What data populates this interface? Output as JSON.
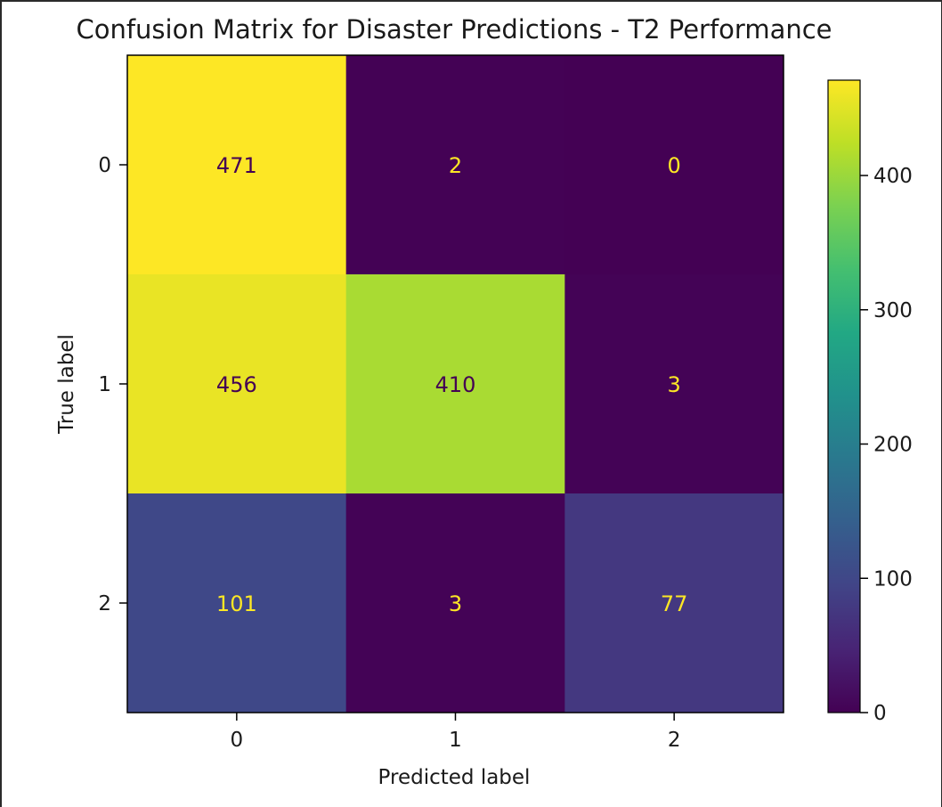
{
  "chart_data": {
    "type": "heatmap",
    "title": "Confusion Matrix for Disaster Predictions - T2 Performance",
    "xlabel": "Predicted label",
    "ylabel": "True label",
    "x_ticks": [
      "0",
      "1",
      "2"
    ],
    "y_ticks": [
      "0",
      "1",
      "2"
    ],
    "matrix": [
      [
        471,
        2,
        0
      ],
      [
        456,
        410,
        3
      ],
      [
        101,
        3,
        77
      ]
    ],
    "colormap": "viridis",
    "colorbar": {
      "range": [
        0,
        471
      ],
      "ticks": [
        0,
        100,
        200,
        300,
        400
      ],
      "tick_labels": [
        "0",
        "100",
        "200",
        "300",
        "400"
      ]
    },
    "text_color_dark": "#440154",
    "text_color_light": "#fde725"
  }
}
